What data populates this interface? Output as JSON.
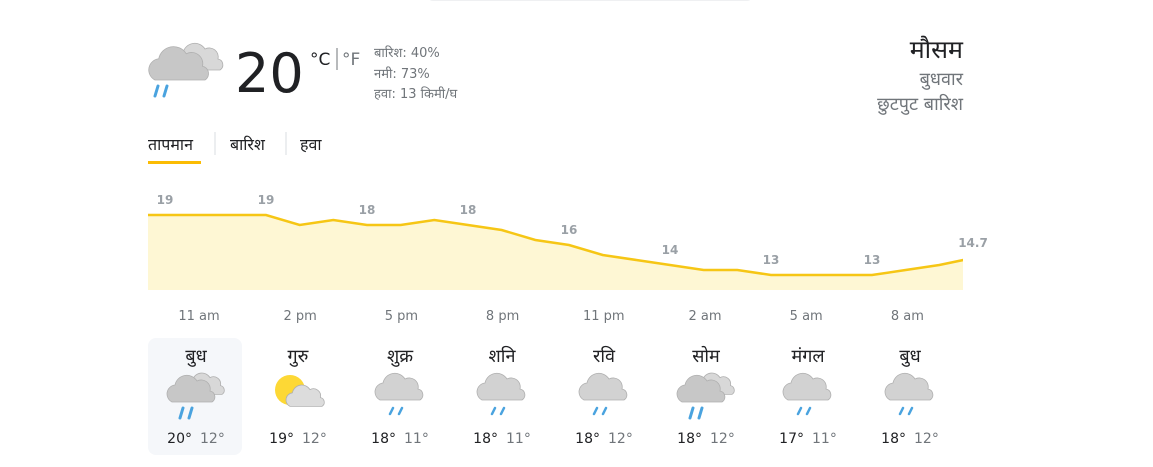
{
  "current": {
    "temperature": "20",
    "unit_c": "°C",
    "unit_f": "°F",
    "details": [
      "बारिश: 40%",
      "नमी: 73%",
      "हवा: 13 किमी/घ"
    ]
  },
  "header": {
    "title": "मौसम",
    "day": "बुधवार",
    "condition": "छुटपुट बारिश"
  },
  "tabs": [
    "तापमान",
    "बारिश",
    "हवा"
  ],
  "chart_data": {
    "type": "area",
    "values": [
      19,
      19,
      19,
      19,
      18,
      18.5,
      18,
      18,
      18.5,
      18,
      17.5,
      16.5,
      16,
      15,
      14.5,
      14,
      13.5,
      13.5,
      13,
      13,
      13,
      13,
      13.5,
      14,
      14.7
    ],
    "color": "#f6c615",
    "ylim": [
      11.5,
      22
    ],
    "times": [
      "11 am",
      "2 pm",
      "5 pm",
      "8 pm",
      "11 pm",
      "2 am",
      "5 am",
      "8 am"
    ]
  },
  "days": [
    {
      "name": "बुध",
      "high": "20°",
      "low": "12°"
    },
    {
      "name": "गुरु",
      "high": "19°",
      "low": "12°"
    },
    {
      "name": "शुक्र",
      "high": "18°",
      "low": "11°"
    },
    {
      "name": "शनि",
      "high": "18°",
      "low": "11°"
    },
    {
      "name": "रवि",
      "high": "18°",
      "low": "12°"
    },
    {
      "name": "सोम",
      "high": "18°",
      "low": "12°"
    },
    {
      "name": "मंगल",
      "high": "17°",
      "low": "11°"
    },
    {
      "name": "बुध",
      "high": "18°",
      "low": "12°"
    }
  ]
}
